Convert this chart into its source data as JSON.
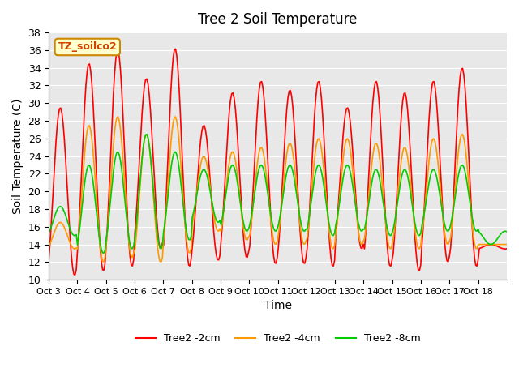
{
  "title": "Tree 2 Soil Temperature",
  "ylabel": "Soil Temperature (C)",
  "xlabel": "Time",
  "annotation": "TZ_soilco2",
  "ylim": [
    10,
    38
  ],
  "yticks": [
    10,
    12,
    14,
    16,
    18,
    20,
    22,
    24,
    26,
    28,
    30,
    32,
    34,
    36,
    38
  ],
  "xtick_labels": [
    "Oct 3",
    "Oct 4",
    "Oct 5",
    "Oct 6",
    "Oct 7",
    "Oct 8",
    "Oct 9",
    "Oct 10",
    "Oct 11",
    "Oct 12",
    "Oct 13",
    "Oct 14",
    "Oct 15",
    "Oct 16",
    "Oct 17",
    "Oct 18"
  ],
  "colors": {
    "2cm": "#ff0000",
    "4cm": "#ff9900",
    "8cm": "#00cc00"
  },
  "legend_labels": [
    "Tree2 -2cm",
    "Tree2 -4cm",
    "Tree2 -8cm"
  ],
  "background_color": "#e8e8e8",
  "annotation_bg": "#ffffcc",
  "annotation_border": "#cc8800",
  "peaks_2cm": [
    29.5,
    34.5,
    36.0,
    32.8,
    36.2,
    27.5,
    31.2,
    32.5,
    31.5,
    32.5,
    29.5,
    32.5,
    31.2,
    32.5,
    34.0,
    14.0
  ],
  "troughs_2cm": [
    10.5,
    11.0,
    11.5,
    13.5,
    11.5,
    12.2,
    12.5,
    11.8,
    11.8,
    11.5,
    13.5,
    11.5,
    11.0,
    12.0,
    11.5,
    13.5
  ],
  "peaks_4cm": [
    16.5,
    27.5,
    28.5,
    26.5,
    28.5,
    24.0,
    24.5,
    25.0,
    25.5,
    26.0,
    26.0,
    25.5,
    25.0,
    26.0,
    26.5,
    14.0
  ],
  "troughs_4cm": [
    13.5,
    12.0,
    12.5,
    12.0,
    13.0,
    15.5,
    14.5,
    14.0,
    14.0,
    13.5,
    14.0,
    13.5,
    13.5,
    14.0,
    13.5,
    14.0
  ],
  "peaks_8cm": [
    18.3,
    23.0,
    24.5,
    26.5,
    24.5,
    22.5,
    23.0,
    23.0,
    23.0,
    23.0,
    23.0,
    22.5,
    22.5,
    22.5,
    23.0,
    14.0
  ],
  "troughs_8cm": [
    15.0,
    13.0,
    13.5,
    13.5,
    14.5,
    16.5,
    15.5,
    15.5,
    15.5,
    15.0,
    15.5,
    15.0,
    15.0,
    15.5,
    15.5,
    15.5
  ]
}
